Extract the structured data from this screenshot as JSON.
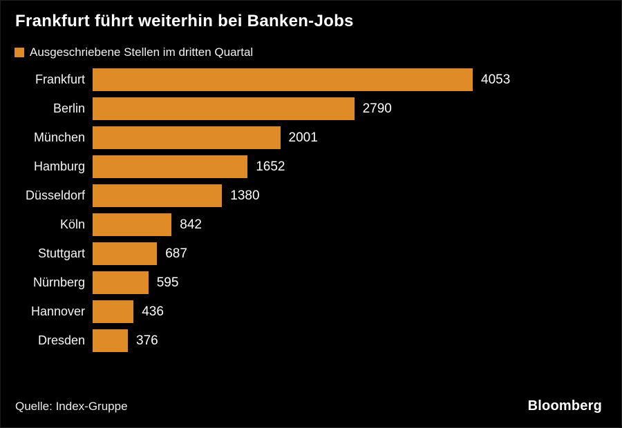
{
  "page": {
    "title": "Frankfurt führt weiterhin bei Banken-Jobs",
    "source": "Quelle: Index-Gruppe",
    "brand": "Bloomberg",
    "background_color": "#000000",
    "text_color": "#ffffff"
  },
  "legend": {
    "label": "Ausgeschriebene Stellen im dritten Quartal",
    "swatch_color": "#DF8C28"
  },
  "chart_data": {
    "type": "bar",
    "orientation": "horizontal",
    "title": "Frankfurt führt weiterhin bei Banken-Jobs",
    "series_label": "Ausgeschriebene Stellen im dritten Quartal",
    "categories": [
      "Frankfurt",
      "Berlin",
      "München",
      "Hamburg",
      "Düsseldorf",
      "Köln",
      "Stuttgart",
      "Nürnberg",
      "Hannover",
      "Dresden"
    ],
    "values": [
      4053,
      2790,
      2001,
      1652,
      1380,
      842,
      687,
      595,
      436,
      376
    ],
    "value_labels_shown": true,
    "bar_color": "#DF8C28",
    "xlim": [
      0,
      4053
    ],
    "grid": false,
    "legend_position": "top-left",
    "source": "Quelle: Index-Gruppe"
  }
}
